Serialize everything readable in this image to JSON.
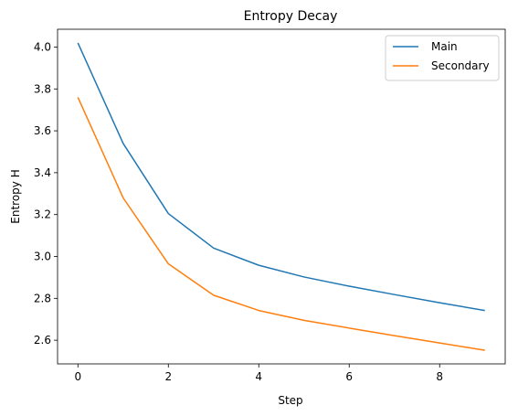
{
  "chart_data": {
    "type": "line",
    "title": "Entropy Decay",
    "xlabel": "Step",
    "ylabel": "Entropy H",
    "xlim": [
      -0.45,
      9.45
    ],
    "ylim": [
      2.487,
      4.085
    ],
    "xticks": [
      0,
      2,
      4,
      6,
      8
    ],
    "yticks": [
      2.6,
      2.8,
      3.0,
      3.2,
      3.4,
      3.6,
      3.8,
      4.0
    ],
    "xtick_labels": [
      "0",
      "2",
      "4",
      "6",
      "8"
    ],
    "ytick_labels": [
      "2.6",
      "2.8",
      "3.0",
      "3.2",
      "3.4",
      "3.6",
      "3.8",
      "4.0"
    ],
    "grid": false,
    "legend_position": "top-right",
    "x": [
      0,
      1,
      2,
      3,
      4,
      5,
      6,
      7,
      8,
      9
    ],
    "series": [
      {
        "name": "Main",
        "color": "#1f77b4",
        "values": [
          4.02,
          3.54,
          3.205,
          3.04,
          2.958,
          2.902,
          2.858,
          2.818,
          2.779,
          2.742
        ]
      },
      {
        "name": "Secondary",
        "color": "#ff7f0e",
        "values": [
          3.76,
          3.28,
          2.965,
          2.815,
          2.742,
          2.695,
          2.658,
          2.622,
          2.587,
          2.552
        ]
      }
    ]
  }
}
